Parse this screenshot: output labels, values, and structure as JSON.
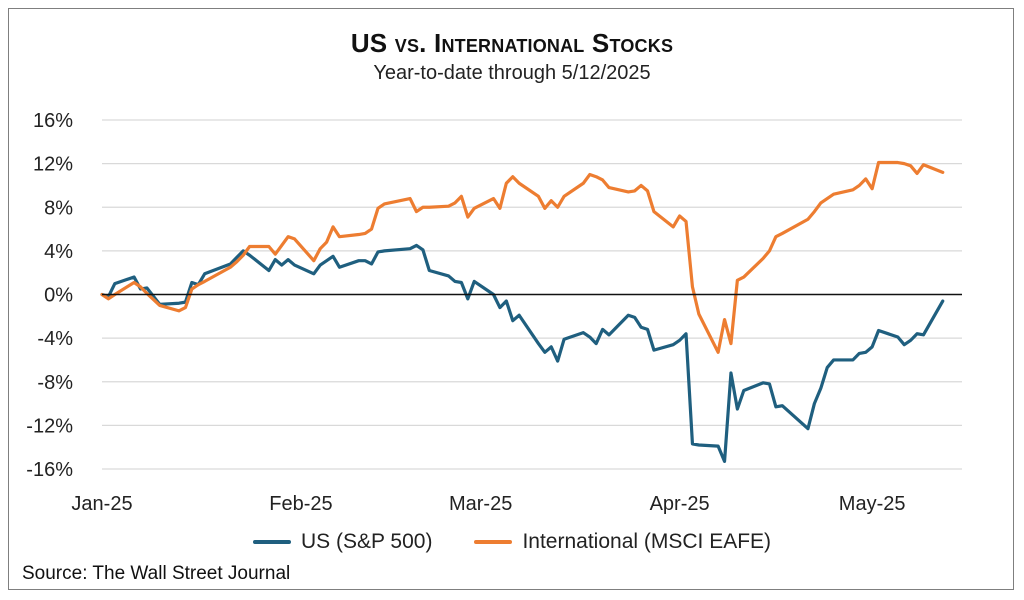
{
  "chart_data": {
    "type": "line",
    "title": "US vs. International Stocks",
    "subtitle": "Year-to-date through 5/12/2025",
    "source": "Source: The Wall Street Journal",
    "ylim": [
      -16,
      16
    ],
    "yticks": [
      16,
      12,
      8,
      4,
      0,
      -4,
      -8,
      -12,
      -16
    ],
    "y_tick_format": "percent",
    "xlim": [
      "2025-01-01",
      "2025-05-15"
    ],
    "xticks": [
      {
        "date": "2025-01-01",
        "label": "Jan-25"
      },
      {
        "date": "2025-02-01",
        "label": "Feb-25"
      },
      {
        "date": "2025-03-01",
        "label": "Mar-25"
      },
      {
        "date": "2025-04-01",
        "label": "Apr-25"
      },
      {
        "date": "2025-05-01",
        "label": "May-25"
      }
    ],
    "grid": true,
    "zero_line": true,
    "legend_position": "bottom",
    "series": [
      {
        "name": "US (S&P 500)",
        "color": "#1f5f7f",
        "points": [
          [
            "2025-01-01",
            0.0
          ],
          [
            "2025-01-02",
            -0.2
          ],
          [
            "2025-01-03",
            1.0
          ],
          [
            "2025-01-06",
            1.6
          ],
          [
            "2025-01-07",
            0.5
          ],
          [
            "2025-01-08",
            0.6
          ],
          [
            "2025-01-10",
            -0.9
          ],
          [
            "2025-01-13",
            -0.8
          ],
          [
            "2025-01-14",
            -0.7
          ],
          [
            "2025-01-15",
            1.1
          ],
          [
            "2025-01-16",
            0.9
          ],
          [
            "2025-01-17",
            1.9
          ],
          [
            "2025-01-21",
            2.8
          ],
          [
            "2025-01-22",
            3.4
          ],
          [
            "2025-01-23",
            4.0
          ],
          [
            "2025-01-24",
            3.6
          ],
          [
            "2025-01-27",
            2.2
          ],
          [
            "2025-01-28",
            3.2
          ],
          [
            "2025-01-29",
            2.7
          ],
          [
            "2025-01-30",
            3.2
          ],
          [
            "2025-01-31",
            2.7
          ],
          [
            "2025-02-03",
            1.9
          ],
          [
            "2025-02-04",
            2.7
          ],
          [
            "2025-02-05",
            3.1
          ],
          [
            "2025-02-06",
            3.5
          ],
          [
            "2025-02-07",
            2.5
          ],
          [
            "2025-02-10",
            3.1
          ],
          [
            "2025-02-11",
            3.1
          ],
          [
            "2025-02-12",
            2.8
          ],
          [
            "2025-02-13",
            3.9
          ],
          [
            "2025-02-14",
            4.0
          ],
          [
            "2025-02-18",
            4.2
          ],
          [
            "2025-02-19",
            4.5
          ],
          [
            "2025-02-20",
            4.1
          ],
          [
            "2025-02-21",
            2.2
          ],
          [
            "2025-02-24",
            1.7
          ],
          [
            "2025-02-25",
            1.2
          ],
          [
            "2025-02-26",
            1.1
          ],
          [
            "2025-02-27",
            -0.4
          ],
          [
            "2025-02-28",
            1.2
          ],
          [
            "2025-03-03",
            0.0
          ],
          [
            "2025-03-04",
            -1.2
          ],
          [
            "2025-03-05",
            -0.6
          ],
          [
            "2025-03-06",
            -2.4
          ],
          [
            "2025-03-07",
            -1.9
          ],
          [
            "2025-03-10",
            -4.5
          ],
          [
            "2025-03-11",
            -5.3
          ],
          [
            "2025-03-12",
            -4.8
          ],
          [
            "2025-03-13",
            -6.1
          ],
          [
            "2025-03-14",
            -4.1
          ],
          [
            "2025-03-17",
            -3.5
          ],
          [
            "2025-03-18",
            -3.9
          ],
          [
            "2025-03-19",
            -4.5
          ],
          [
            "2025-03-20",
            -3.2
          ],
          [
            "2025-03-21",
            -3.7
          ],
          [
            "2025-03-24",
            -1.9
          ],
          [
            "2025-03-25",
            -2.1
          ],
          [
            "2025-03-26",
            -3.0
          ],
          [
            "2025-03-27",
            -3.2
          ],
          [
            "2025-03-28",
            -5.1
          ],
          [
            "2025-03-31",
            -4.6
          ],
          [
            "2025-04-01",
            -4.2
          ],
          [
            "2025-04-02",
            -3.6
          ],
          [
            "2025-04-03",
            -13.7
          ],
          [
            "2025-04-04",
            -13.8
          ],
          [
            "2025-04-07",
            -13.9
          ],
          [
            "2025-04-08",
            -15.3
          ],
          [
            "2025-04-09",
            -7.2
          ],
          [
            "2025-04-10",
            -10.5
          ],
          [
            "2025-04-11",
            -8.8
          ],
          [
            "2025-04-14",
            -8.1
          ],
          [
            "2025-04-15",
            -8.2
          ],
          [
            "2025-04-16",
            -10.3
          ],
          [
            "2025-04-17",
            -10.2
          ],
          [
            "2025-04-21",
            -12.3
          ],
          [
            "2025-04-22",
            -10.0
          ],
          [
            "2025-04-23",
            -8.6
          ],
          [
            "2025-04-24",
            -6.7
          ],
          [
            "2025-04-25",
            -6.0
          ],
          [
            "2025-04-28",
            -6.0
          ],
          [
            "2025-04-29",
            -5.4
          ],
          [
            "2025-04-30",
            -5.3
          ],
          [
            "2025-05-01",
            -4.8
          ],
          [
            "2025-05-02",
            -3.3
          ],
          [
            "2025-05-05",
            -3.9
          ],
          [
            "2025-05-06",
            -4.6
          ],
          [
            "2025-05-07",
            -4.2
          ],
          [
            "2025-05-08",
            -3.6
          ],
          [
            "2025-05-09",
            -3.7
          ],
          [
            "2025-05-12",
            -0.6
          ]
        ]
      },
      {
        "name": "International (MSCI EAFE)",
        "color": "#ed7d31",
        "points": [
          [
            "2025-01-01",
            0.0
          ],
          [
            "2025-01-02",
            -0.4
          ],
          [
            "2025-01-03",
            0.0
          ],
          [
            "2025-01-06",
            1.1
          ],
          [
            "2025-01-07",
            0.7
          ],
          [
            "2025-01-08",
            0.1
          ],
          [
            "2025-01-10",
            -1.0
          ],
          [
            "2025-01-13",
            -1.5
          ],
          [
            "2025-01-14",
            -1.2
          ],
          [
            "2025-01-15",
            0.5
          ],
          [
            "2025-01-16",
            0.9
          ],
          [
            "2025-01-17",
            1.2
          ],
          [
            "2025-01-21",
            2.5
          ],
          [
            "2025-01-22",
            3.0
          ],
          [
            "2025-01-23",
            3.6
          ],
          [
            "2025-01-24",
            4.4
          ],
          [
            "2025-01-27",
            4.4
          ],
          [
            "2025-01-28",
            3.7
          ],
          [
            "2025-01-29",
            4.5
          ],
          [
            "2025-01-30",
            5.3
          ],
          [
            "2025-01-31",
            5.1
          ],
          [
            "2025-02-03",
            3.1
          ],
          [
            "2025-02-04",
            4.2
          ],
          [
            "2025-02-05",
            4.8
          ],
          [
            "2025-02-06",
            6.2
          ],
          [
            "2025-02-07",
            5.3
          ],
          [
            "2025-02-10",
            5.5
          ],
          [
            "2025-02-11",
            5.6
          ],
          [
            "2025-02-12",
            6.0
          ],
          [
            "2025-02-13",
            7.9
          ],
          [
            "2025-02-14",
            8.3
          ],
          [
            "2025-02-18",
            8.8
          ],
          [
            "2025-02-19",
            7.6
          ],
          [
            "2025-02-20",
            8.0
          ],
          [
            "2025-02-21",
            8.0
          ],
          [
            "2025-02-24",
            8.1
          ],
          [
            "2025-02-25",
            8.4
          ],
          [
            "2025-02-26",
            9.0
          ],
          [
            "2025-02-27",
            7.1
          ],
          [
            "2025-02-28",
            7.9
          ],
          [
            "2025-03-03",
            8.8
          ],
          [
            "2025-03-04",
            7.9
          ],
          [
            "2025-03-05",
            10.2
          ],
          [
            "2025-03-06",
            10.8
          ],
          [
            "2025-03-07",
            10.2
          ],
          [
            "2025-03-10",
            9.0
          ],
          [
            "2025-03-11",
            7.9
          ],
          [
            "2025-03-12",
            8.6
          ],
          [
            "2025-03-13",
            8.0
          ],
          [
            "2025-03-14",
            9.0
          ],
          [
            "2025-03-17",
            10.2
          ],
          [
            "2025-03-18",
            11.0
          ],
          [
            "2025-03-19",
            10.8
          ],
          [
            "2025-03-20",
            10.5
          ],
          [
            "2025-03-21",
            9.8
          ],
          [
            "2025-03-24",
            9.4
          ],
          [
            "2025-03-25",
            9.5
          ],
          [
            "2025-03-26",
            10.0
          ],
          [
            "2025-03-27",
            9.5
          ],
          [
            "2025-03-28",
            7.6
          ],
          [
            "2025-03-31",
            6.2
          ],
          [
            "2025-04-01",
            7.2
          ],
          [
            "2025-04-02",
            6.7
          ],
          [
            "2025-04-03",
            0.7
          ],
          [
            "2025-04-04",
            -1.8
          ],
          [
            "2025-04-07",
            -5.3
          ],
          [
            "2025-04-08",
            -2.3
          ],
          [
            "2025-04-09",
            -4.5
          ],
          [
            "2025-04-10",
            1.3
          ],
          [
            "2025-04-11",
            1.6
          ],
          [
            "2025-04-14",
            3.3
          ],
          [
            "2025-04-15",
            4.0
          ],
          [
            "2025-04-16",
            5.3
          ],
          [
            "2025-04-17",
            5.6
          ],
          [
            "2025-04-21",
            6.9
          ],
          [
            "2025-04-22",
            7.6
          ],
          [
            "2025-04-23",
            8.4
          ],
          [
            "2025-04-24",
            8.8
          ],
          [
            "2025-04-25",
            9.2
          ],
          [
            "2025-04-28",
            9.6
          ],
          [
            "2025-04-29",
            10.0
          ],
          [
            "2025-04-30",
            10.6
          ],
          [
            "2025-05-01",
            9.7
          ],
          [
            "2025-05-02",
            12.1
          ],
          [
            "2025-05-05",
            12.1
          ],
          [
            "2025-05-06",
            12.0
          ],
          [
            "2025-05-07",
            11.8
          ],
          [
            "2025-05-08",
            11.1
          ],
          [
            "2025-05-09",
            11.9
          ],
          [
            "2025-05-12",
            11.2
          ]
        ]
      }
    ]
  }
}
